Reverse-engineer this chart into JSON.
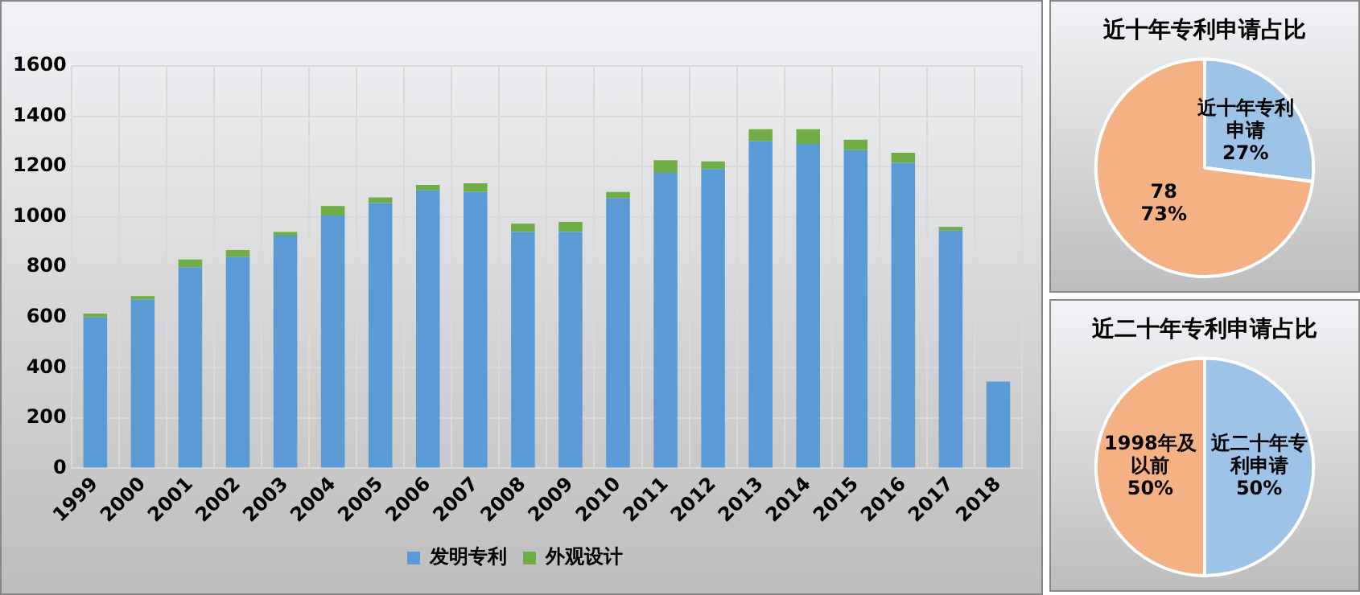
{
  "chart_data": [
    {
      "type": "bar",
      "stacked": true,
      "categories": [
        "1999",
        "2000",
        "2001",
        "2002",
        "2003",
        "2004",
        "2005",
        "2006",
        "2007",
        "2008",
        "2009",
        "2010",
        "2011",
        "2012",
        "2013",
        "2014",
        "2015",
        "2016",
        "2017",
        "2018"
      ],
      "series": [
        {
          "name": "发明专利",
          "color": "#5b9bd5",
          "values": [
            600,
            670,
            800,
            840,
            925,
            1005,
            1055,
            1105,
            1100,
            940,
            940,
            1075,
            1175,
            1190,
            1300,
            1290,
            1265,
            1215,
            945,
            345
          ]
        },
        {
          "name": "外观设计",
          "color": "#70ad47",
          "values": [
            15,
            15,
            30,
            28,
            15,
            38,
            22,
            22,
            33,
            33,
            40,
            24,
            50,
            30,
            48,
            58,
            42,
            40,
            15,
            0
          ]
        }
      ],
      "ylim": [
        0,
        1600
      ],
      "yticks": [
        0,
        200,
        400,
        600,
        800,
        1000,
        1200,
        1400,
        1600
      ],
      "grid": true,
      "legend": "bottom"
    },
    {
      "type": "pie",
      "title": "近十年专利申请占比",
      "categories": [
        "近十年专利申请",
        "78"
      ],
      "values": [
        27,
        73
      ],
      "colors": [
        "#9dc3e6",
        "#f4b183"
      ],
      "value_labels": [
        "27%",
        "73%"
      ]
    },
    {
      "type": "pie",
      "title": "近二十年专利申请占比",
      "categories": [
        "近二十年专利申请",
        "1998年及以前"
      ],
      "values": [
        50,
        50
      ],
      "colors": [
        "#9dc3e6",
        "#f4b183"
      ],
      "value_labels": [
        "50%",
        "50%"
      ]
    }
  ]
}
